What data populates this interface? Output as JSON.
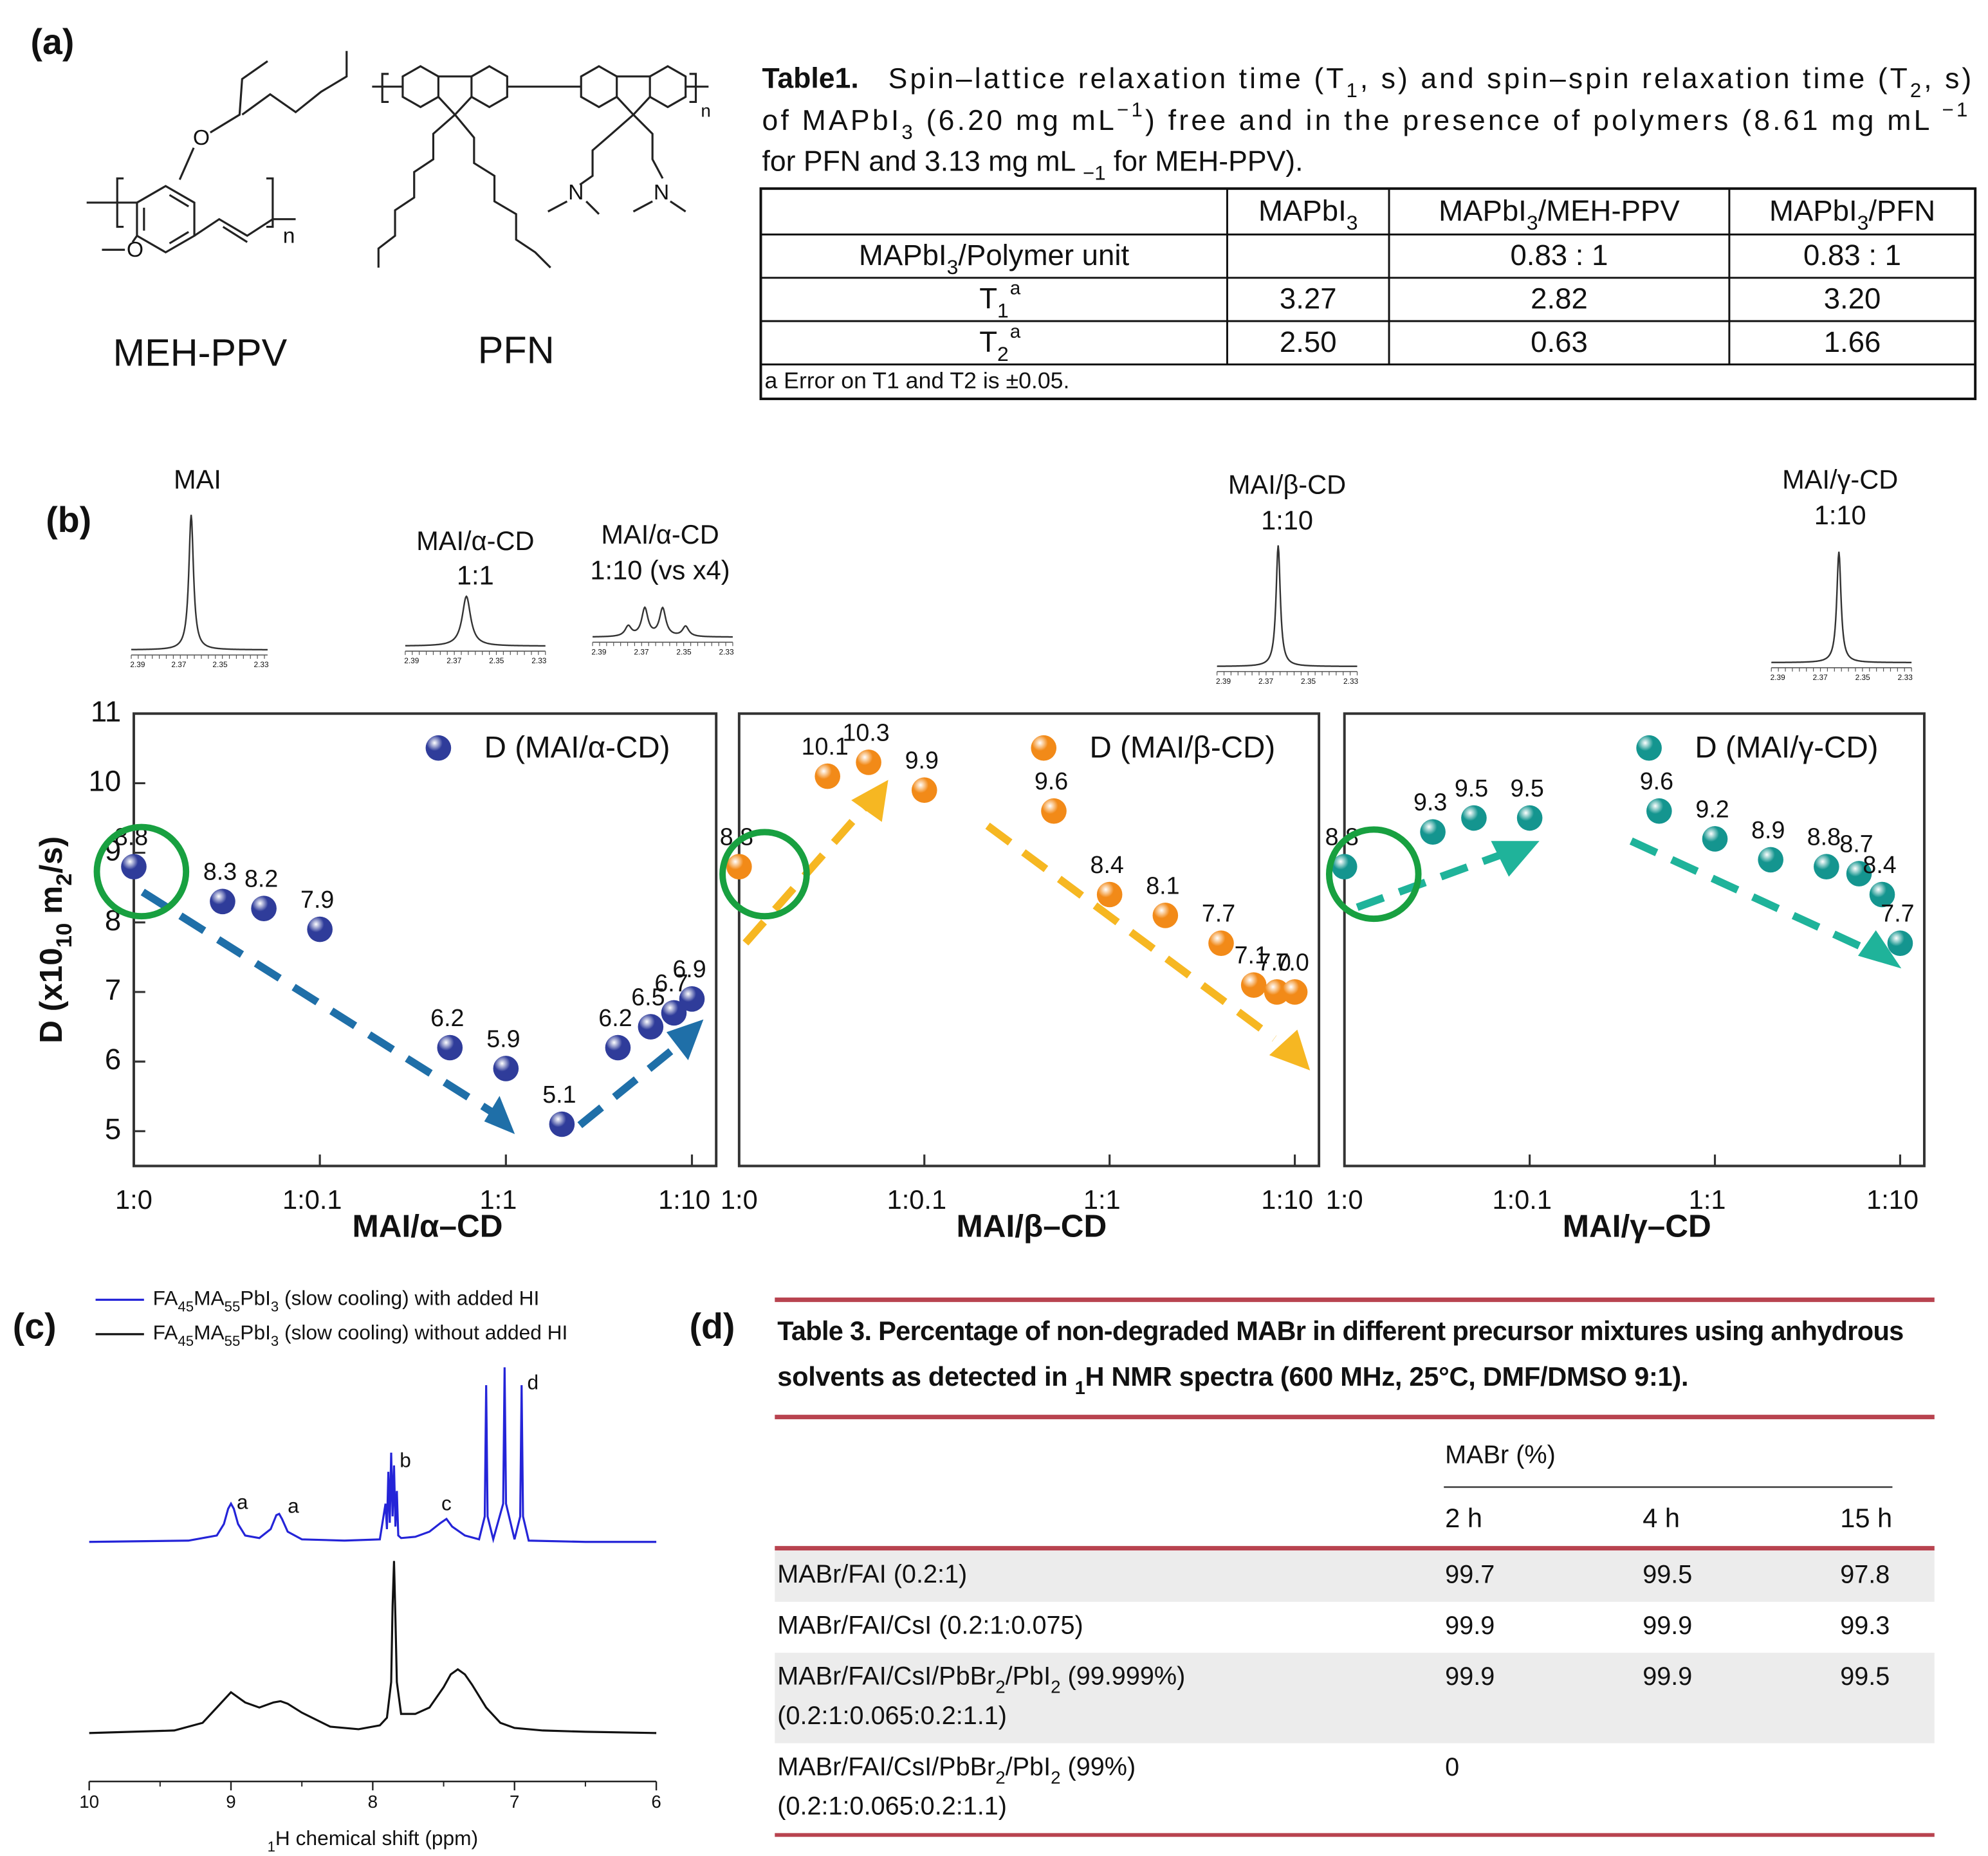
{
  "panel_labels": [
    "(a)",
    "(b)",
    "(c)",
    "(d)"
  ],
  "structures": {
    "labels": [
      "MEH-PPV",
      "PFN"
    ],
    "atoms": [
      "O",
      "O",
      "n",
      "N",
      "N",
      "n"
    ]
  },
  "table1": {
    "title": "Table1.",
    "caption_lines": [
      "Spin–lattice relaxation time (T1, s) and spin–spin relaxation time (T2, s)",
      "of MAPbI3 (6.20 mg mL−1) free and in the presence of polymers (8.61 mg mL −1",
      "for PFN and 3.13 mg mL −1 for MEH-PPV)."
    ],
    "header": [
      "MAPbI3",
      "MAPbI3/MEH-PPV",
      "MAPbI3/PFN"
    ],
    "rows": [
      {
        "label": "MAPbI3/Polymer  unit",
        "cells": [
          null,
          "0.83 : 1",
          "0.83 : 1"
        ]
      },
      {
        "label": "T1",
        "note": "a",
        "cells": [
          "3.27",
          "2.82",
          "3.20"
        ]
      },
      {
        "label": "T2",
        "note": "a",
        "cells": [
          "2.50",
          "0.63",
          "1.66"
        ]
      }
    ],
    "footnote": "a Error on T1 and T2 is ±0.05."
  },
  "insets": [
    {
      "label": [
        "MAI"
      ]
    },
    {
      "label": [
        "MAI/α-CD",
        "1:1"
      ]
    },
    {
      "label": [
        "MAI/α-CD",
        "1:10 (vs x4)"
      ]
    },
    {
      "label": [
        "MAI/β-CD",
        "1:10"
      ]
    },
    {
      "label": [
        "MAI/γ-CD",
        "1:10"
      ]
    }
  ],
  "inset_tick_labels": [
    "2.39",
    "2.37",
    "2.35",
    "2.33"
  ],
  "chart_data": [
    {
      "type": "scatter",
      "x_label": "MAI/α–CD",
      "y_label": "D (x1010 m2/s)",
      "xlog": true,
      "xlim": [
        0.01,
        13.5
      ],
      "ylim": [
        4.5,
        11
      ],
      "xticks": [
        {
          "value": 0.01,
          "label": "1:0"
        },
        {
          "value": 0.1,
          "label": "1:0.1"
        },
        {
          "value": 1,
          "label": "1:1"
        },
        {
          "value": 10,
          "label": "1:10"
        }
      ],
      "yticks": [
        5,
        6,
        7,
        8,
        9,
        10,
        11
      ],
      "series": [
        {
          "name": "D (MAI/α-CD)",
          "color": "#2f3c9a",
          "x": [
            0.01,
            0.03,
            0.05,
            0.1,
            0.5,
            1,
            2,
            4,
            6,
            8,
            10
          ],
          "values": [
            8.8,
            8.3,
            8.2,
            7.9,
            6.2,
            5.9,
            5.1,
            6.2,
            6.5,
            6.7,
            6.9
          ]
        }
      ]
    },
    {
      "type": "scatter",
      "x_label": "MAI/β–CD",
      "xlog": true,
      "xlim": [
        0.01,
        13.5
      ],
      "ylim": [
        4.5,
        11
      ],
      "xticks": [
        {
          "value": 0.01,
          "label": "1:0"
        },
        {
          "value": 0.1,
          "label": "1:0.1"
        },
        {
          "value": 1,
          "label": "1:1"
        },
        {
          "value": 10,
          "label": "1:10"
        }
      ],
      "series": [
        {
          "name": "D (MAI/β-CD)",
          "color": "#f28a18",
          "x": [
            0.01,
            0.03,
            0.05,
            0.1,
            0.5,
            1,
            2,
            4,
            6,
            8,
            10
          ],
          "values": [
            8.8,
            10.1,
            10.3,
            9.9,
            9.6,
            8.4,
            8.1,
            7.7,
            7.1,
            7,
            7
          ],
          "value_labels": [
            "8.8",
            "10.1",
            "10.3",
            "9.9",
            "9.6",
            "8.4",
            "8.1",
            "7.7",
            "7.1",
            "7.0",
            "7.0"
          ]
        }
      ]
    },
    {
      "type": "scatter",
      "x_label": "MAI/γ–CD",
      "xlog": true,
      "xlim": [
        0.01,
        13.5
      ],
      "ylim": [
        4.5,
        11
      ],
      "xticks": [
        {
          "value": 0.01,
          "label": "1:0"
        },
        {
          "value": 0.1,
          "label": "1:0.1"
        },
        {
          "value": 1,
          "label": "1:1"
        },
        {
          "value": 10,
          "label": "1:10"
        }
      ],
      "series": [
        {
          "name": "D (MAI/γ-CD)",
          "color": "#14958f",
          "x": [
            0.01,
            0.03,
            0.05,
            0.1,
            0.5,
            1,
            2,
            4,
            6,
            8,
            10
          ],
          "values": [
            8.8,
            9.3,
            9.5,
            9.5,
            9.6,
            9.2,
            8.9,
            8.8,
            8.7,
            8.4,
            7.7
          ]
        }
      ]
    },
    {
      "type": "line",
      "x_label": "1H chemical shift (ppm)",
      "xlim": [
        10,
        6
      ],
      "xticks": [
        10,
        9,
        8,
        7,
        6
      ],
      "series": [
        {
          "name": "FA45MA55PbI3 (slow cooling) with added HI",
          "color": "#2424d8",
          "x": [
            10,
            9.3,
            9.1,
            9.05,
            9.02,
            9.0,
            8.98,
            8.95,
            8.9,
            8.8,
            8.72,
            8.68,
            8.66,
            8.64,
            8.6,
            8.5,
            8.2,
            7.95,
            7.91,
            7.9,
            7.89,
            7.88,
            7.87,
            7.86,
            7.85,
            7.84,
            7.83,
            7.82,
            7.8,
            7.7,
            7.6,
            7.52,
            7.48,
            7.44,
            7.35,
            7.25,
            7.21,
            7.2,
            7.19,
            7.15,
            7.08,
            7.07,
            7.06,
            7.0,
            6.96,
            6.95,
            6.94,
            6.9,
            6.5,
            6
          ],
          "values": [
            0,
            1,
            5,
            14,
            26,
            30,
            26,
            14,
            5,
            3,
            10,
            21,
            22,
            18,
            8,
            2,
            1,
            2,
            30,
            10,
            55,
            15,
            70,
            20,
            60,
            12,
            40,
            5,
            3,
            4,
            8,
            15,
            18,
            12,
            5,
            2,
            20,
            123,
            20,
            2,
            30,
            137,
            30,
            2,
            20,
            123,
            20,
            1,
            0,
            0
          ]
        },
        {
          "name": "FA45MA55PbI3 (slow cooling) without added HI",
          "color": "#111111",
          "x": [
            10,
            9.4,
            9.2,
            9.1,
            9.0,
            8.9,
            8.8,
            8.7,
            8.65,
            8.6,
            8.5,
            8.3,
            8.1,
            7.95,
            7.9,
            7.87,
            7.86,
            7.85,
            7.84,
            7.83,
            7.8,
            7.7,
            7.6,
            7.5,
            7.45,
            7.4,
            7.35,
            7.3,
            7.2,
            7.1,
            7.0,
            6.8,
            6.5,
            6
          ],
          "values": [
            0,
            2,
            8,
            20,
            32,
            24,
            20,
            24,
            25,
            23,
            16,
            5,
            3,
            6,
            12,
            40,
            100,
            135,
            90,
            40,
            15,
            15,
            20,
            36,
            46,
            50,
            46,
            38,
            20,
            8,
            4,
            2,
            1,
            0
          ]
        }
      ],
      "annotations": [
        {
          "text": "a",
          "x": 8.92
        },
        {
          "text": "a",
          "x": 8.56
        },
        {
          "text": "b",
          "x": 7.77
        },
        {
          "text": "c",
          "x": 7.48
        },
        {
          "text": "d",
          "x": 6.87
        }
      ]
    }
  ],
  "table3": {
    "title_lines": [
      "Table 3.  Percentage of non-degraded MABr in different precursor mixtures using anhydrous",
      "solvents as detected in 1H NMR spectra (600 MHz, 25°C, DMF/DMSO 9:1)."
    ],
    "group_header": "MABr (%)",
    "columns": [
      "2 h",
      "4 h",
      "15 h"
    ],
    "rows": [
      {
        "label": [
          "MABr/FAI (0.2:1)"
        ],
        "values": [
          99.7,
          99.5,
          97.8
        ]
      },
      {
        "label": [
          "MABr/FAI/CsI (0.2:1:0.075)"
        ],
        "values": [
          99.9,
          99.9,
          99.3
        ]
      },
      {
        "label": [
          "MABr/FAI/CsI/PbBr2/PbI2 (99.999%)",
          "(0.2:1:0.065:0.2:1.1)"
        ],
        "values": [
          99.9,
          99.9,
          99.5
        ]
      },
      {
        "label": [
          "MABr/FAI/CsI/PbBr2/PbI2 (99%)",
          "(0.2:1:0.065:0.2:1.1)"
        ],
        "values": [
          0,
          null,
          null
        ]
      }
    ]
  }
}
